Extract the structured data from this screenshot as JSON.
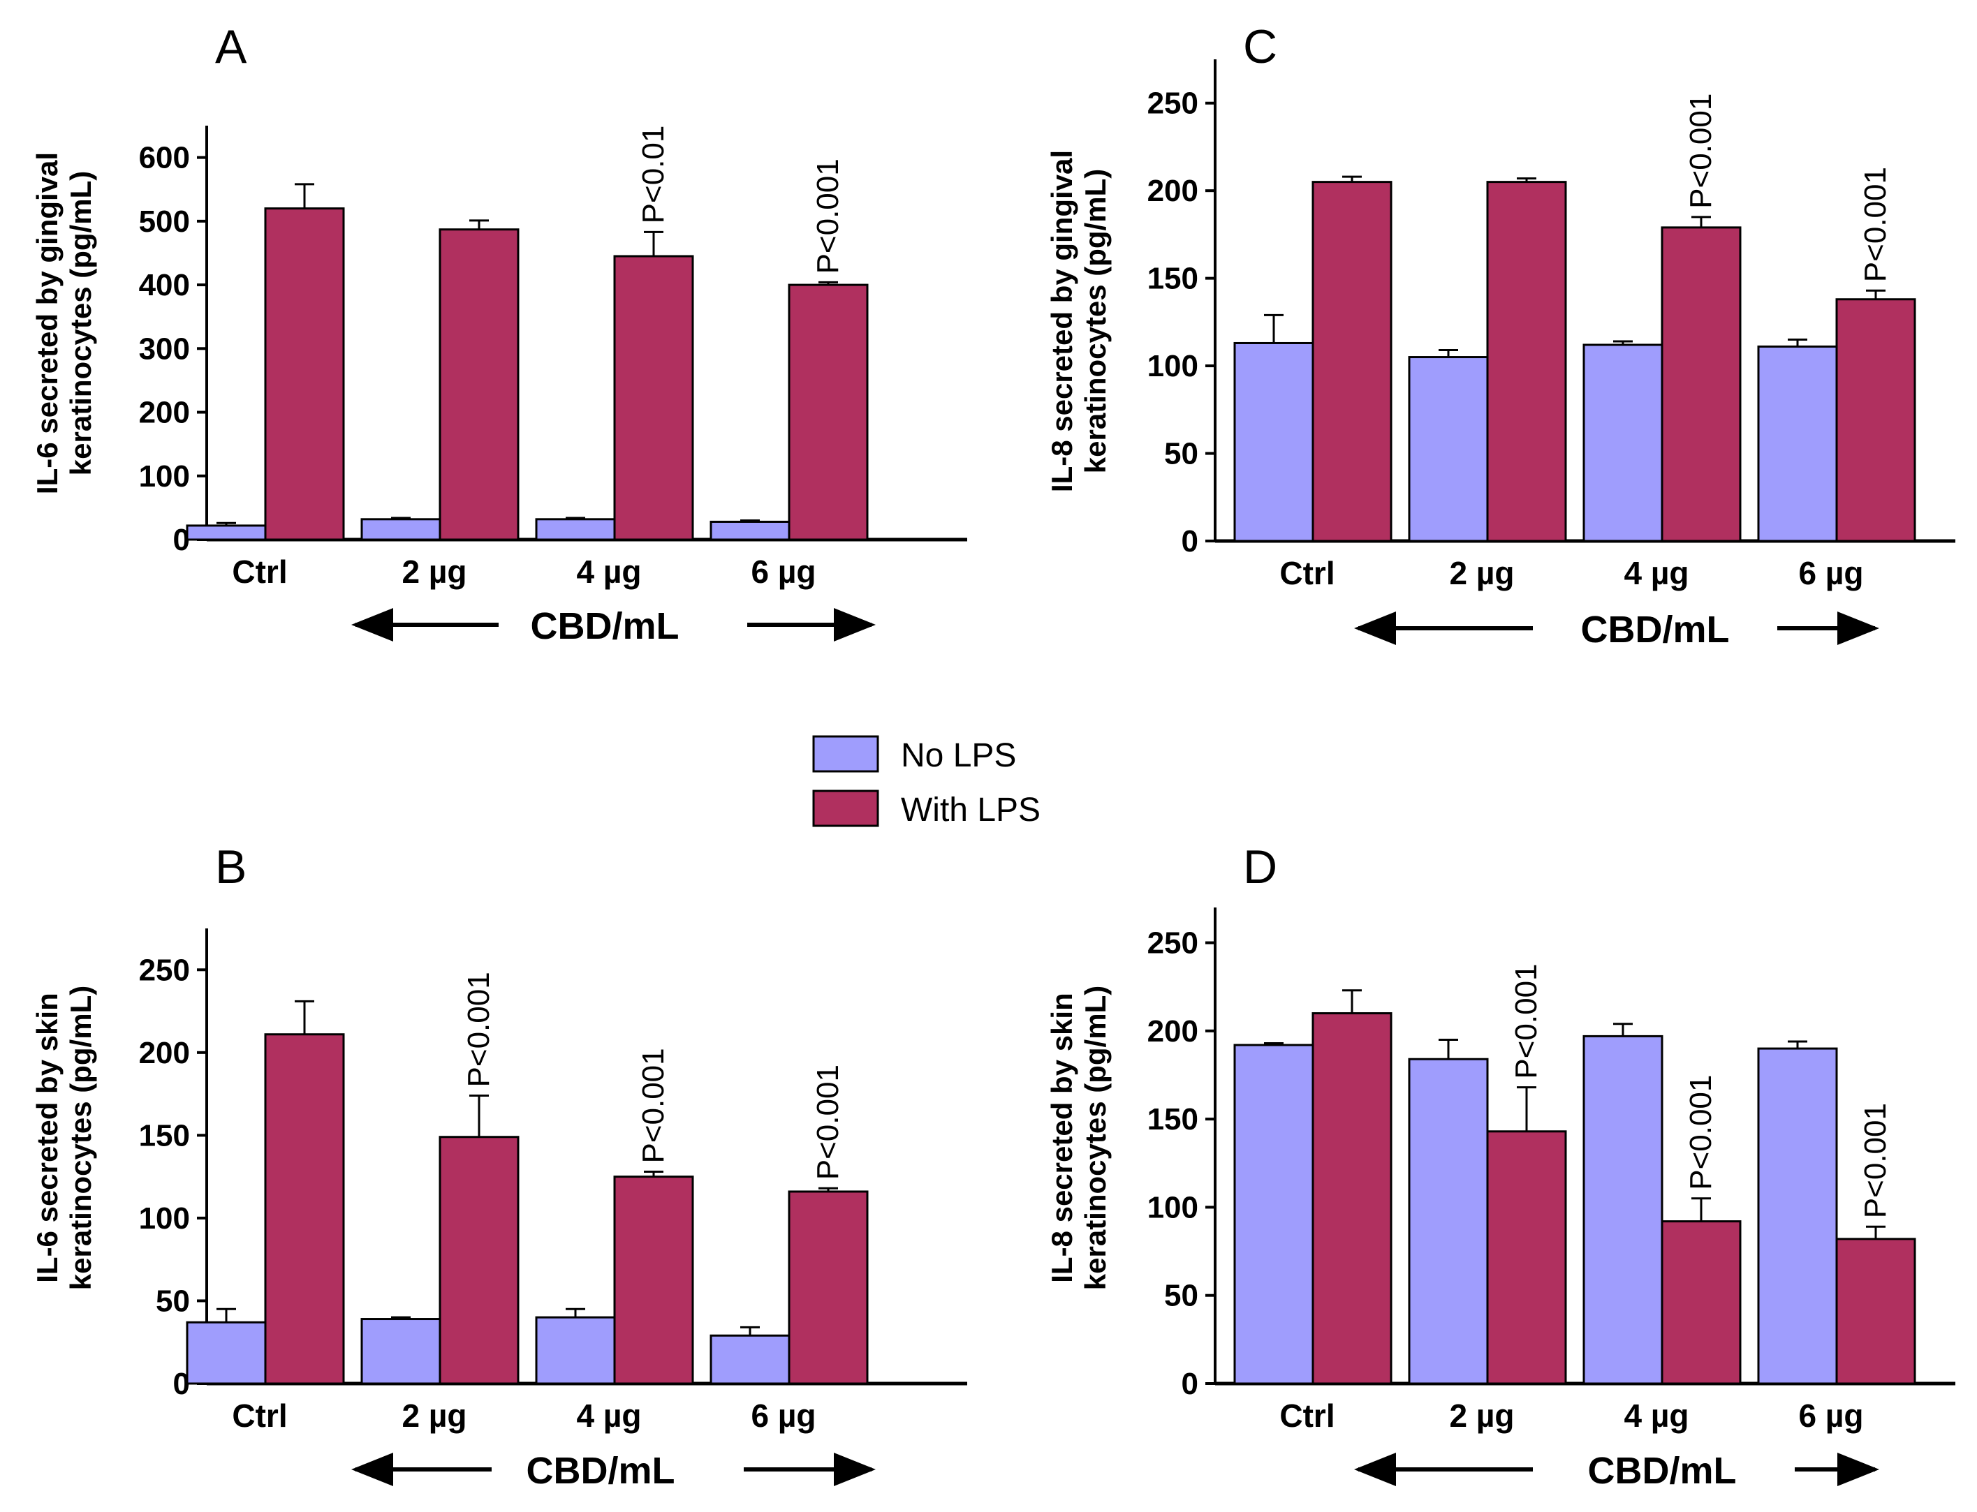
{
  "legend": {
    "entries": [
      {
        "label": "No LPS",
        "color": "#9f9dfd"
      },
      {
        "label": "With LPS",
        "color": "#b0305f"
      }
    ]
  },
  "chart_data": [
    {
      "panel": "A",
      "type": "bar",
      "ylabel_line1": "IL-6 secreted by gingival",
      "ylabel_line2": "keratinocytes (pg/mL)",
      "xlabel": "CBD/mL",
      "categories": [
        "Ctrl",
        "2 µg",
        "4 µg",
        "6 µg"
      ],
      "ylim": [
        0,
        650
      ],
      "yticks": [
        0,
        100,
        200,
        300,
        400,
        500,
        600
      ],
      "series": [
        {
          "name": "No LPS",
          "values": [
            22,
            32,
            32,
            28
          ],
          "errors": [
            4,
            2,
            2,
            2
          ]
        },
        {
          "name": "With LPS",
          "values": [
            520,
            487,
            445,
            400
          ],
          "errors": [
            38,
            14,
            38,
            4
          ]
        }
      ],
      "annotations": [
        "",
        "",
        "P<0.01",
        "P<0.001"
      ]
    },
    {
      "panel": "C",
      "type": "bar",
      "ylabel_line1": "IL-8 secreted by gingival",
      "ylabel_line2": "keratinocytes (pg/mL)",
      "xlabel": "CBD/mL",
      "categories": [
        "Ctrl",
        "2 µg",
        "4 µg",
        "6 µg"
      ],
      "ylim": [
        0,
        275
      ],
      "yticks": [
        0,
        50,
        100,
        150,
        200,
        250
      ],
      "series": [
        {
          "name": "No LPS",
          "values": [
            113,
            105,
            112,
            111
          ],
          "errors": [
            16,
            4,
            2,
            4
          ]
        },
        {
          "name": "With LPS",
          "values": [
            205,
            205,
            179,
            138
          ],
          "errors": [
            3,
            2,
            6,
            5
          ]
        }
      ],
      "annotations": [
        "",
        "",
        "P<0.001",
        "P<0.001"
      ]
    },
    {
      "panel": "B",
      "type": "bar",
      "ylabel_line1": "IL-6 secreted by skin",
      "ylabel_line2": "keratinocytes (pg/mL)",
      "xlabel": "CBD/mL",
      "categories": [
        "Ctrl",
        "2 µg",
        "4 µg",
        "6 µg"
      ],
      "ylim": [
        0,
        275
      ],
      "yticks": [
        0,
        50,
        100,
        150,
        200,
        250
      ],
      "series": [
        {
          "name": "No LPS",
          "values": [
            37,
            39,
            40,
            29
          ],
          "errors": [
            8,
            1,
            5,
            5
          ]
        },
        {
          "name": "With LPS",
          "values": [
            211,
            149,
            125,
            116
          ],
          "errors": [
            20,
            25,
            3,
            2
          ]
        }
      ],
      "annotations": [
        "",
        "P<0.001",
        "P<0.001",
        "P<0.001"
      ]
    },
    {
      "panel": "D",
      "type": "bar",
      "ylabel_line1": "IL-8 secreted by skin",
      "ylabel_line2": "keratinocytes (pg/mL)",
      "xlabel": "CBD/mL",
      "categories": [
        "Ctrl",
        "2 µg",
        "4 µg",
        "6 µg"
      ],
      "ylim": [
        0,
        270
      ],
      "yticks": [
        0,
        50,
        100,
        150,
        200,
        250
      ],
      "series": [
        {
          "name": "No LPS",
          "values": [
            192,
            184,
            197,
            190
          ],
          "errors": [
            1,
            11,
            7,
            4
          ]
        },
        {
          "name": "With LPS",
          "values": [
            210,
            143,
            92,
            82
          ],
          "errors": [
            13,
            25,
            13,
            7
          ]
        }
      ],
      "annotations": [
        "",
        "P<0.001",
        "P<0.001",
        "P<0.001"
      ]
    }
  ]
}
